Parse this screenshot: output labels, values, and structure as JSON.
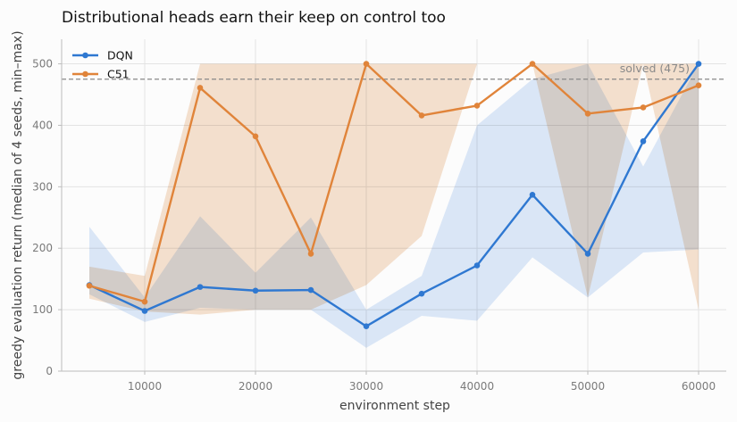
{
  "chart_data": {
    "type": "line",
    "title": "Distributional heads earn their keep on control too",
    "xlabel": "environment step",
    "ylabel": "greedy evaluation return (median of 4 seeds, min–max)",
    "xlim": [
      2500,
      62500
    ],
    "ylim": [
      0,
      540
    ],
    "xticks": [
      10000,
      20000,
      30000,
      40000,
      50000,
      60000
    ],
    "yticks": [
      0,
      100,
      200,
      300,
      400,
      500
    ],
    "grid": true,
    "legend_position": "top-left",
    "x": [
      5000,
      10000,
      15000,
      20000,
      25000,
      30000,
      35000,
      40000,
      45000,
      50000,
      55000,
      60000
    ],
    "series": [
      {
        "name": "DQN",
        "color": "#2f78d1",
        "band_color": "#d7e5f8",
        "values": [
          140,
          98,
          137,
          131,
          132,
          73,
          126,
          172,
          287,
          191,
          374,
          500
        ],
        "min": [
          125,
          80,
          103,
          100,
          100,
          38,
          90,
          82,
          185,
          120,
          193,
          198
        ],
        "max": [
          235,
          120,
          252,
          160,
          250,
          100,
          155,
          400,
          475,
          500,
          333,
          500
        ]
      },
      {
        "name": "C51",
        "color": "#e0843a",
        "band_color": "#f5ddc8",
        "values": [
          139,
          113,
          461,
          382,
          191,
          500,
          416,
          432,
          500,
          419,
          429,
          465
        ],
        "min": [
          118,
          97,
          92,
          100,
          100,
          140,
          220,
          500,
          500,
          120,
          500,
          100
        ],
        "max": [
          170,
          155,
          500,
          500,
          500,
          500,
          500,
          500,
          500,
          500,
          500,
          500
        ]
      }
    ],
    "reference_line": {
      "value": 475,
      "label": "solved (475)",
      "color": "#888888"
    }
  }
}
